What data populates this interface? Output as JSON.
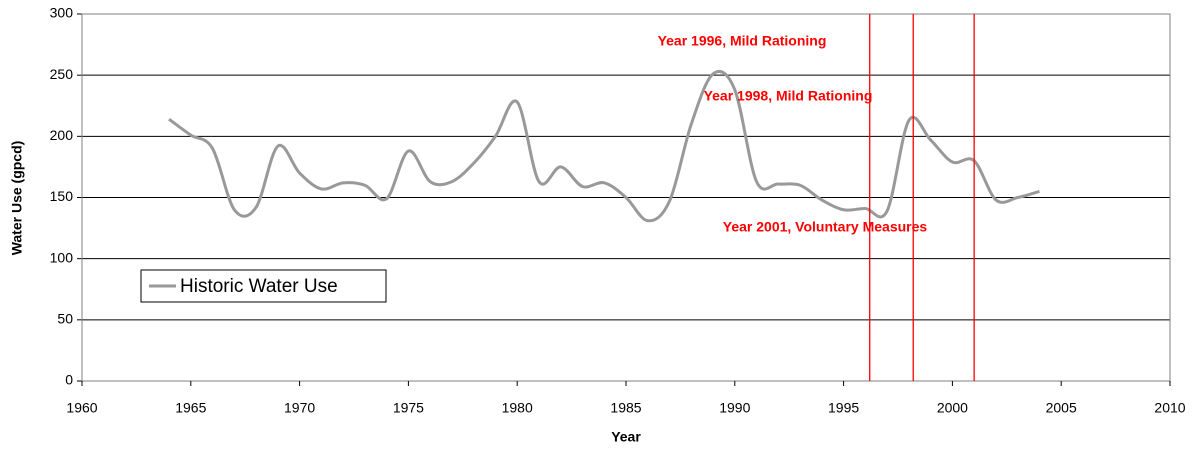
{
  "chart_data": {
    "type": "line",
    "x_label": "Year",
    "y_label": "Water Use (gpcd)",
    "x": [
      1964,
      1965,
      1966,
      1967,
      1968,
      1969,
      1970,
      1971,
      1972,
      1973,
      1974,
      1975,
      1976,
      1977,
      1978,
      1979,
      1980,
      1981,
      1982,
      1983,
      1984,
      1985,
      1986,
      1987,
      1988,
      1989,
      1990,
      1991,
      1992,
      1993,
      1994,
      1995,
      1996,
      1997,
      1998,
      1999,
      2000,
      2001,
      2002,
      2003,
      2004
    ],
    "series": [
      {
        "name": "Historic Water Use",
        "color": "#999999",
        "values": [
          214,
          201,
          190,
          140,
          142,
          192,
          170,
          157,
          162,
          160,
          149,
          188,
          163,
          163,
          178,
          200,
          228,
          163,
          175,
          159,
          162,
          150,
          131,
          147,
          210,
          251,
          238,
          163,
          161,
          160,
          148,
          140,
          141,
          139,
          213,
          197,
          179,
          180,
          148,
          150,
          155
        ]
      }
    ],
    "xlim": [
      1960,
      2010
    ],
    "xticks": [
      1960,
      1965,
      1970,
      1975,
      1980,
      1985,
      1990,
      1995,
      2000,
      2005,
      2010
    ],
    "ylim": [
      0,
      300
    ],
    "yticks": [
      0,
      50,
      100,
      150,
      200,
      250,
      300
    ],
    "grid": true,
    "vlines": [
      {
        "x": 1996.2,
        "label": "Year 1996, Mild Rationing"
      },
      {
        "x": 1998.2,
        "label": "Year 1998, Mild Rationing"
      },
      {
        "x": 2001.0,
        "label": "Year 2001, Voluntary Measures"
      }
    ],
    "vline_color": "#ff0000",
    "legend": "lower left"
  }
}
